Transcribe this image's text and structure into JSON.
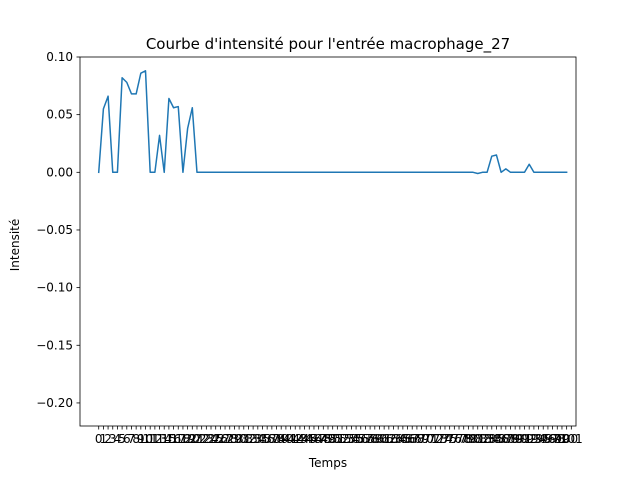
{
  "chart_data": {
    "type": "line",
    "title": "Courbe d'intensité pour l'entrée macrophage_27",
    "xlabel": "Temps",
    "ylabel": "Intensité",
    "ylim": [
      -0.22,
      0.1
    ],
    "yticks": [
      0.1,
      0.05,
      0.0,
      -0.05,
      -0.1,
      -0.15,
      -0.2
    ],
    "ytick_labels": [
      "0.10",
      "0.05",
      "0.00",
      "−0.05",
      "−0.10",
      "−0.15",
      "−0.20"
    ],
    "xlim": [
      -4,
      102
    ],
    "xtick_values": [
      0,
      1,
      2,
      3,
      4,
      5,
      6,
      7,
      8,
      9,
      10,
      11,
      12,
      13,
      14,
      15,
      16,
      17,
      18,
      19,
      20,
      21,
      22,
      23,
      24,
      25,
      26,
      27,
      28,
      29,
      30,
      31,
      32,
      33,
      34,
      35,
      36,
      37,
      38,
      39,
      40,
      41,
      42,
      43,
      44,
      45,
      46,
      47,
      48,
      49,
      50,
      51,
      52,
      53,
      54,
      55,
      56,
      57,
      58,
      59,
      60,
      61,
      62,
      63,
      64,
      65,
      66,
      67,
      68,
      69,
      70,
      71,
      72,
      73,
      74,
      75,
      76,
      77,
      78,
      79,
      80,
      81,
      82,
      83,
      84,
      85,
      86,
      87,
      88,
      89,
      90,
      91,
      92,
      93,
      94,
      95,
      96,
      97,
      98,
      99,
      100,
      101
    ],
    "grid": false,
    "legend": "none",
    "series": [
      {
        "color": "#1f77b4",
        "x": [
          0,
          1,
          2,
          3,
          4,
          5,
          6,
          7,
          8,
          9,
          10,
          11,
          12,
          13,
          14,
          15,
          16,
          17,
          18,
          19,
          20,
          21,
          22,
          23,
          24,
          25,
          26,
          27,
          28,
          29,
          30,
          31,
          32,
          33,
          34,
          35,
          36,
          37,
          38,
          39,
          40,
          41,
          42,
          43,
          44,
          45,
          46,
          47,
          48,
          49,
          50,
          51,
          52,
          53,
          54,
          55,
          56,
          57,
          58,
          59,
          60,
          61,
          62,
          63,
          64,
          65,
          66,
          67,
          68,
          69,
          70,
          71,
          72,
          73,
          74,
          75,
          76,
          77,
          78,
          79,
          80,
          81,
          82,
          83,
          84,
          85,
          86,
          87,
          88,
          89,
          90,
          91,
          92,
          93,
          94,
          95,
          96,
          97,
          98,
          99,
          100
        ],
        "values": [
          0,
          0.055,
          0.066,
          0,
          0,
          0.082,
          0.078,
          0.068,
          0.068,
          0.086,
          0.088,
          0,
          0,
          0.032,
          0,
          0.064,
          0.056,
          0.057,
          0,
          0.038,
          0.056,
          0,
          0,
          0,
          0,
          0,
          0,
          0,
          0,
          0,
          0,
          0,
          0,
          0,
          0,
          0,
          0,
          0,
          0,
          0,
          0,
          0,
          0,
          0,
          0,
          0,
          0,
          0,
          0,
          0,
          0,
          0,
          0,
          0,
          0,
          0,
          0,
          0,
          0,
          0,
          0,
          0,
          0,
          0,
          0,
          0,
          0,
          0,
          0,
          0,
          0,
          0,
          0,
          0,
          0,
          0,
          0,
          0,
          0,
          0,
          0,
          -0.001,
          0,
          0.0,
          0.014,
          0.015,
          0,
          0.003,
          0,
          0,
          0,
          0,
          0.007,
          0,
          0,
          0,
          0,
          0,
          0,
          0,
          0
        ]
      }
    ]
  }
}
